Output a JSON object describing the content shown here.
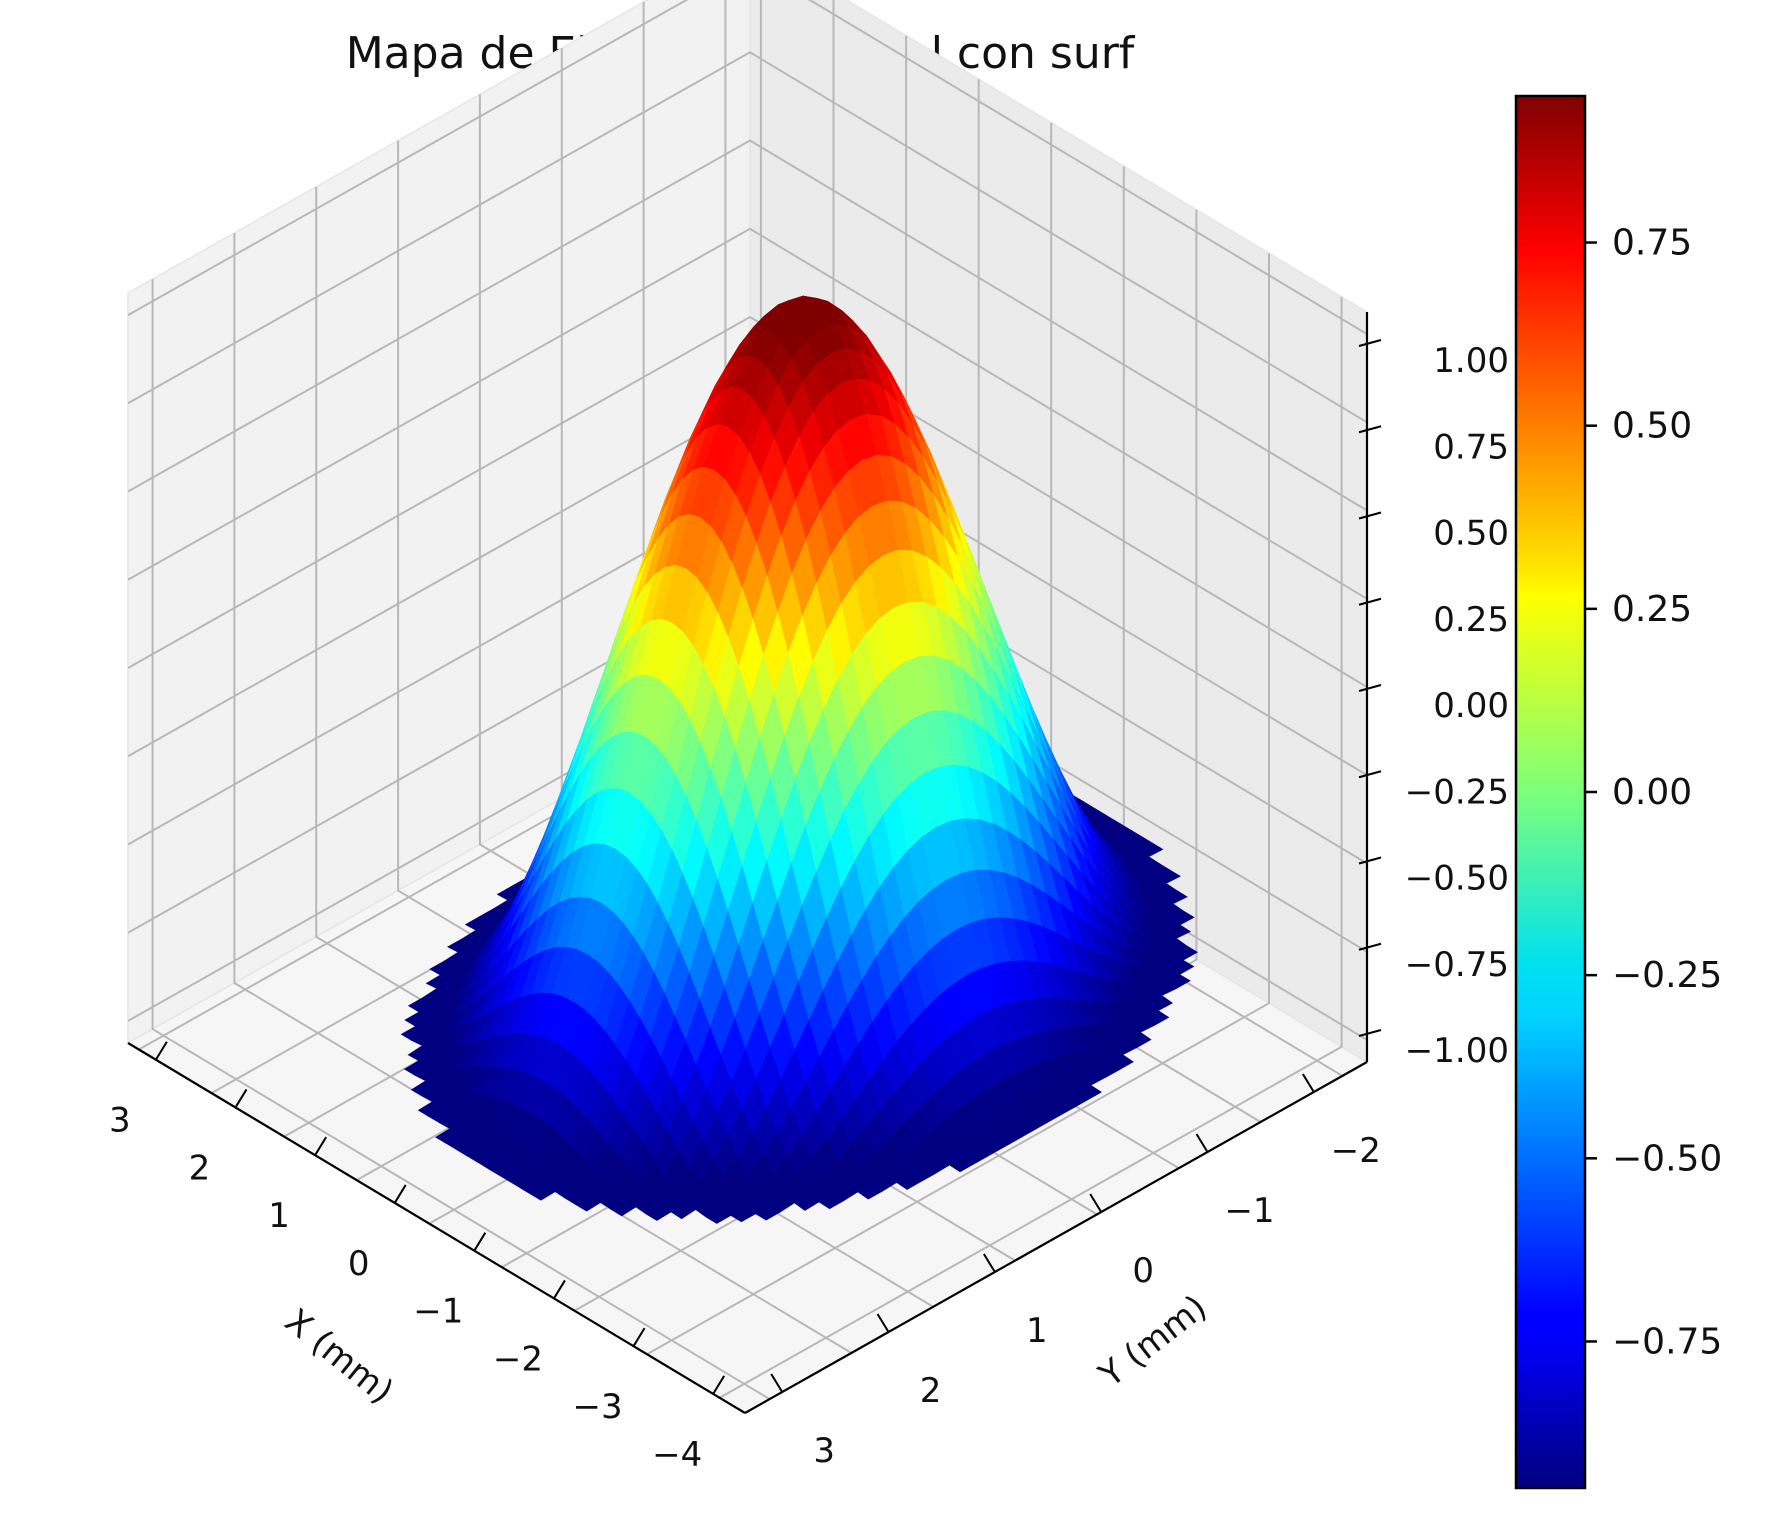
{
  "chart_data": {
    "type": "surface3d",
    "title": "Mapa de Elevación Corneal con surf",
    "xlabel": "X (mm)",
    "ylabel": "Y (mm)",
    "zlabel": "",
    "x_ticks": [
      "3",
      "2",
      "1",
      "0",
      "−1",
      "−2",
      "−3",
      "−4"
    ],
    "y_ticks": [
      "3",
      "2",
      "1",
      "0",
      "−1",
      "−2"
    ],
    "z_ticks": [
      "−1.00",
      "−0.75",
      "−0.50",
      "−0.25",
      "0.00",
      "0.25",
      "0.50",
      "0.75",
      "1.00"
    ],
    "z_tick_values": [
      -1.0,
      -0.75,
      -0.5,
      -0.25,
      0.0,
      0.25,
      0.5,
      0.75,
      1.0
    ],
    "xlim": [
      -4,
      4
    ],
    "ylim": [
      -2.5,
      3.5
    ],
    "zlim": [
      -1.0,
      1.0
    ],
    "grid": true,
    "colormap": "jet",
    "surface": {
      "domain": "disk",
      "center": [
        0,
        0
      ],
      "radius": 3,
      "function": "z = cos(pi*r/3)",
      "z_range": [
        -1.0,
        1.0
      ]
    },
    "colorbar": {
      "ticks": [
        "−0.75",
        "−0.50",
        "−0.25",
        "0.00",
        "0.25",
        "0.50",
        "0.75"
      ],
      "tick_values": [
        -0.75,
        -0.5,
        -0.25,
        0.0,
        0.25,
        0.5,
        0.75
      ],
      "range": [
        -0.95,
        0.95
      ]
    }
  }
}
